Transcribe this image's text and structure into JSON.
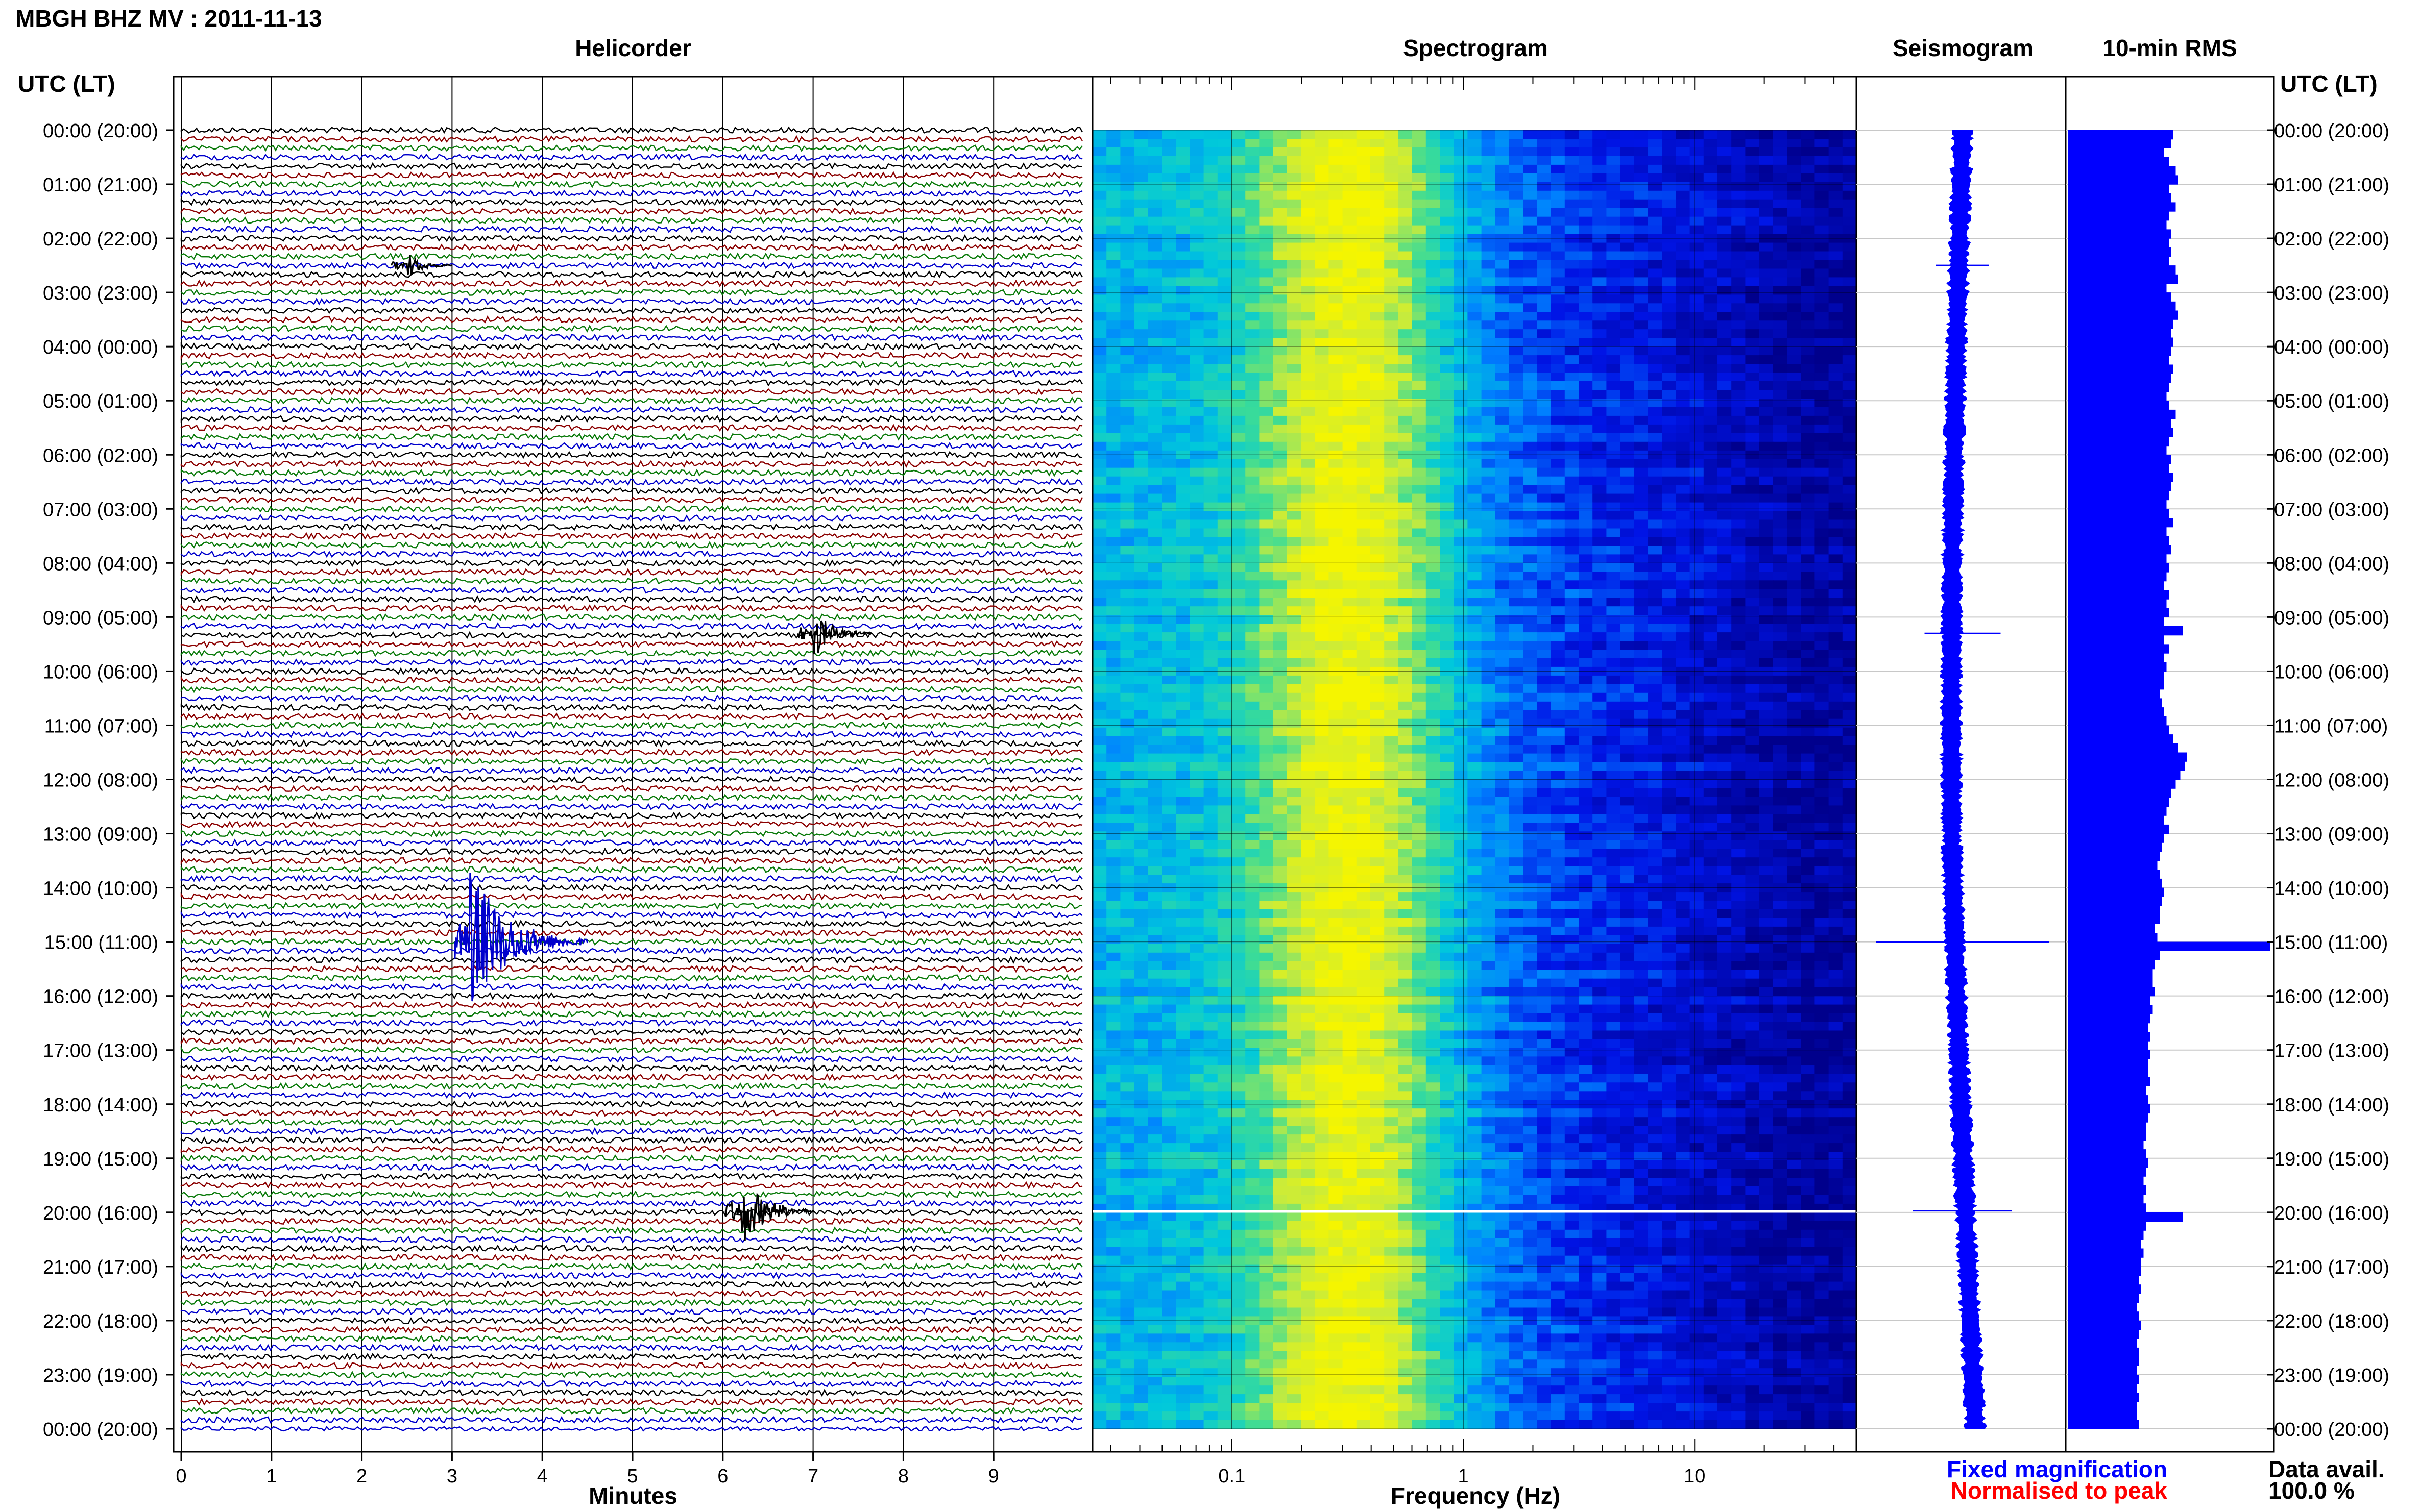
{
  "chart_data": {
    "type": "heatmap",
    "title": "MBGH BHZ MV : 2011-11-13",
    "panels": [
      {
        "name": "helicorder",
        "title": "Helicorder",
        "xlabel": "Minutes",
        "xlim": [
          0,
          10
        ],
        "x_ticks": [
          "0",
          "1",
          "2",
          "3",
          "4",
          "5",
          "6",
          "7",
          "8",
          "9"
        ],
        "trace_colors": [
          "#000000",
          "#8b0000",
          "#0a7a0a",
          "#0000cc"
        ],
        "traces_per_hour": 6,
        "events": [
          {
            "hour": 2.5,
            "minute": 2.5,
            "amplitude": 0.6,
            "color": "#000000"
          },
          {
            "hour": 9.3,
            "minute": 7.0,
            "amplitude": 1.1,
            "color": "#000000"
          },
          {
            "hour": 15.0,
            "minute": 3.2,
            "amplitude": 3.2,
            "color": "#0000cc"
          },
          {
            "hour": 19.97,
            "minute": 6.2,
            "amplitude": 1.6,
            "color": "#000000"
          }
        ]
      },
      {
        "name": "spectrogram",
        "title": "Spectrogram",
        "xlabel": "Frequency (Hz)",
        "xscale": "log",
        "xlim": [
          0.025,
          50
        ],
        "x_ticks": [
          "0.1",
          "1",
          "10"
        ]
      },
      {
        "name": "seismogram",
        "title": "Seismogram"
      },
      {
        "name": "rms",
        "title": "10-min RMS",
        "values": [
          0.46,
          0.45,
          0.42,
          0.44,
          0.47,
          0.48,
          0.44,
          0.45,
          0.47,
          0.44,
          0.43,
          0.45,
          0.44,
          0.45,
          0.44,
          0.47,
          0.48,
          0.43,
          0.45,
          0.47,
          0.48,
          0.46,
          0.45,
          0.46,
          0.45,
          0.44,
          0.46,
          0.45,
          0.44,
          0.43,
          0.44,
          0.47,
          0.45,
          0.46,
          0.44,
          0.43,
          0.45,
          0.44,
          0.46,
          0.45,
          0.44,
          0.43,
          0.44,
          0.46,
          0.43,
          0.44,
          0.45,
          0.43,
          0.44,
          0.43,
          0.42,
          0.44,
          0.43,
          0.44,
          0.42,
          0.5,
          0.42,
          0.44,
          0.42,
          0.43,
          0.42,
          0.42,
          0.4,
          0.41,
          0.42,
          0.43,
          0.44,
          0.46,
          0.48,
          0.52,
          0.51,
          0.49,
          0.47,
          0.45,
          0.44,
          0.43,
          0.42,
          0.44,
          0.42,
          0.41,
          0.4,
          0.39,
          0.4,
          0.41,
          0.42,
          0.41,
          0.4,
          0.4,
          0.38,
          0.39,
          0.88,
          0.4,
          0.38,
          0.37,
          0.37,
          0.38,
          0.36,
          0.37,
          0.36,
          0.35,
          0.36,
          0.35,
          0.36,
          0.35,
          0.35,
          0.36,
          0.34,
          0.35,
          0.36,
          0.35,
          0.34,
          0.34,
          0.33,
          0.34,
          0.35,
          0.34,
          0.33,
          0.34,
          0.33,
          0.34,
          0.5,
          0.34,
          0.33,
          0.32,
          0.33,
          0.32,
          0.32,
          0.31,
          0.32,
          0.31,
          0.3,
          0.31,
          0.32,
          0.31,
          0.3,
          0.31,
          0.31,
          0.3,
          0.31,
          0.3,
          0.31,
          0.3,
          0.3,
          0.31
        ]
      }
    ],
    "y_axis_label": "UTC (LT)",
    "y_ticks": [
      "00:00 (20:00)",
      "01:00 (21:00)",
      "02:00 (22:00)",
      "03:00 (23:00)",
      "04:00 (00:00)",
      "05:00 (01:00)",
      "06:00 (02:00)",
      "07:00 (03:00)",
      "08:00 (04:00)",
      "09:00 (05:00)",
      "10:00 (06:00)",
      "11:00 (07:00)",
      "12:00 (08:00)",
      "13:00 (09:00)",
      "14:00 (10:00)",
      "15:00 (11:00)",
      "16:00 (12:00)",
      "17:00 (13:00)",
      "18:00 (14:00)",
      "19:00 (15:00)",
      "20:00 (16:00)",
      "21:00 (17:00)",
      "22:00 (18:00)",
      "23:00 (19:00)",
      "00:00 (20:00)"
    ],
    "legend": {
      "fixed": "Fixed magnification",
      "normalised": "Normalised to peak",
      "fixed_color": "#0000ff",
      "normalised_color": "#ff0000"
    },
    "data_availability": {
      "label": "Data avail.",
      "value": "100.0 %"
    }
  }
}
